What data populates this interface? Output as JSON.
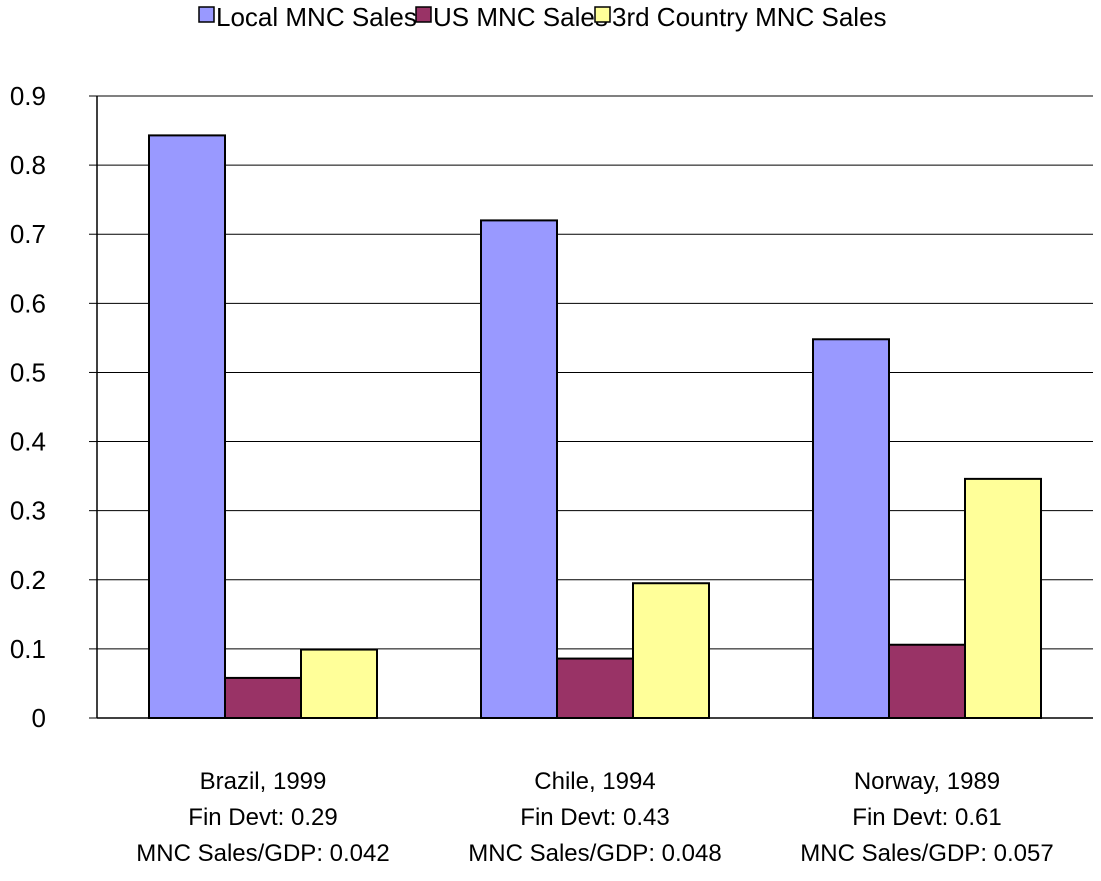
{
  "chart_data": {
    "type": "bar",
    "title": "",
    "xlabel": "",
    "ylabel": "",
    "ylim": [
      0,
      0.9
    ],
    "yticks": [
      0,
      0.1,
      0.2,
      0.3,
      0.4,
      0.5,
      0.6,
      0.7,
      0.8,
      0.9
    ],
    "ytick_labels": [
      "0",
      "0.1",
      "0.2",
      "0.3",
      "0.4",
      "0.5",
      "0.6",
      "0.7",
      "0.8",
      "0.9"
    ],
    "grid": true,
    "legend_position": "top",
    "categories": [
      {
        "lines": [
          "Brazil, 1999",
          "Fin Devt: 0.29",
          "MNC Sales/GDP: 0.042"
        ]
      },
      {
        "lines": [
          "Chile, 1994",
          "Fin Devt: 0.43",
          "MNC Sales/GDP: 0.048"
        ]
      },
      {
        "lines": [
          "Norway, 1989",
          "Fin Devt: 0.61",
          "MNC Sales/GDP: 0.057"
        ]
      }
    ],
    "series": [
      {
        "name": "Local MNC Sales",
        "color": "#9999ff",
        "values": [
          0.843,
          0.72,
          0.548
        ]
      },
      {
        "name": "US MNC Sales",
        "color": "#993366",
        "values": [
          0.058,
          0.086,
          0.106
        ]
      },
      {
        "name": "3rd Country MNC Sales",
        "color": "#ffff99",
        "values": [
          0.099,
          0.195,
          0.346
        ]
      }
    ]
  }
}
